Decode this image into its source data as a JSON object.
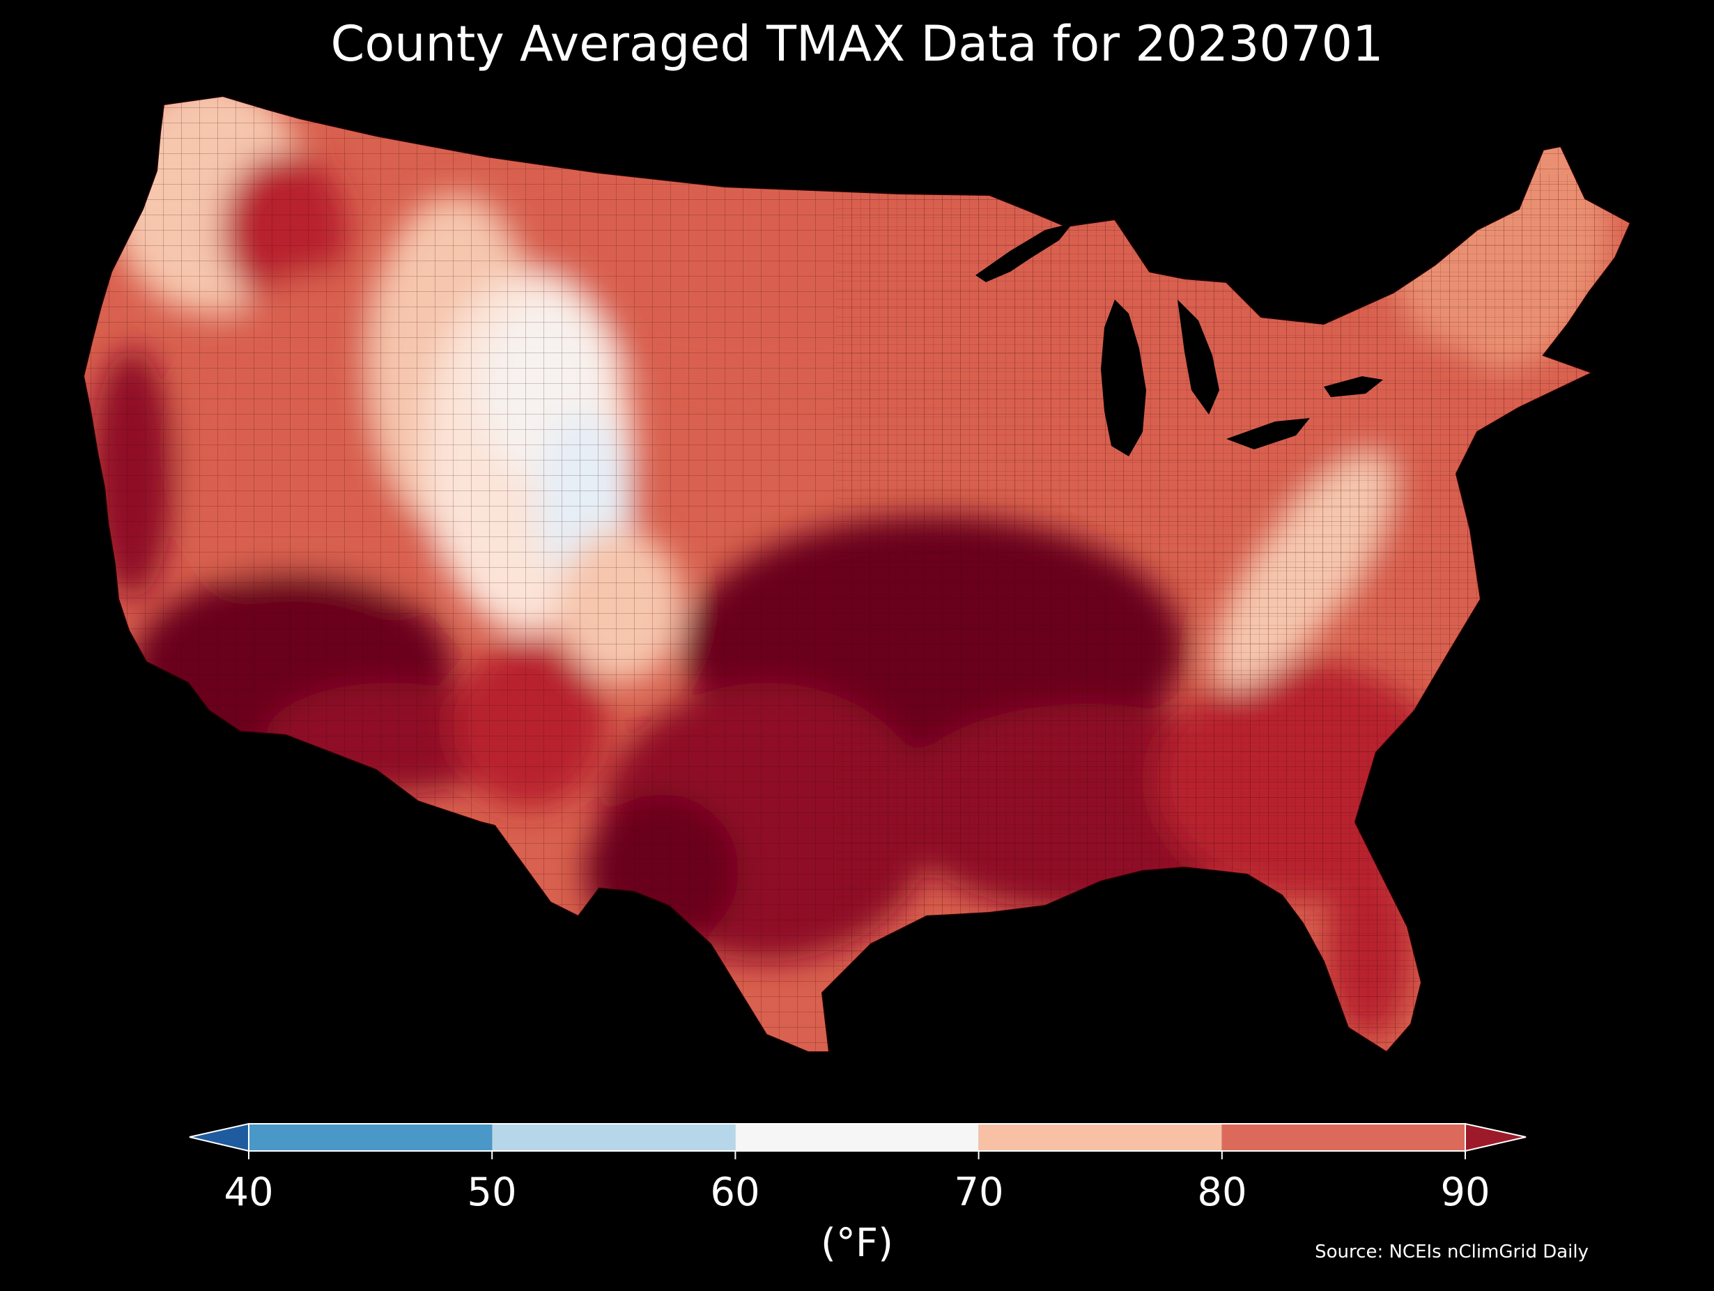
{
  "title": "County Averaged TMAX Data for 20230701",
  "source": "Source: NCEIs nClimGrid Daily",
  "colorbar": {
    "label": "(°F)",
    "ticks": [
      "40",
      "50",
      "60",
      "70",
      "80",
      "90"
    ],
    "bins": [
      {
        "from": 40,
        "to": 50,
        "color": "#4a98c8"
      },
      {
        "from": 50,
        "to": 60,
        "color": "#b5d7e9"
      },
      {
        "from": 60,
        "to": 70,
        "color": "#f6f6f6"
      },
      {
        "from": 70,
        "to": 80,
        "color": "#f8c0a4"
      },
      {
        "from": 80,
        "to": 90,
        "color": "#dc6a5a"
      }
    ],
    "under_color": "#1f5b9f",
    "over_color": "#9c1a2a"
  },
  "map": {
    "region": "Contiguous United States counties",
    "ocean_color": "#000000",
    "colors": {
      "hottest": "#6b001b",
      "very_hot": "#8f0e25",
      "hot": "#b8242e",
      "warm": "#d9614f",
      "mild_warm": "#ea9072",
      "mild": "#f6c6ad",
      "cool": "#fbe4d8",
      "neutral": "#f7f2ef",
      "cold": "#e6eef6"
    }
  }
}
